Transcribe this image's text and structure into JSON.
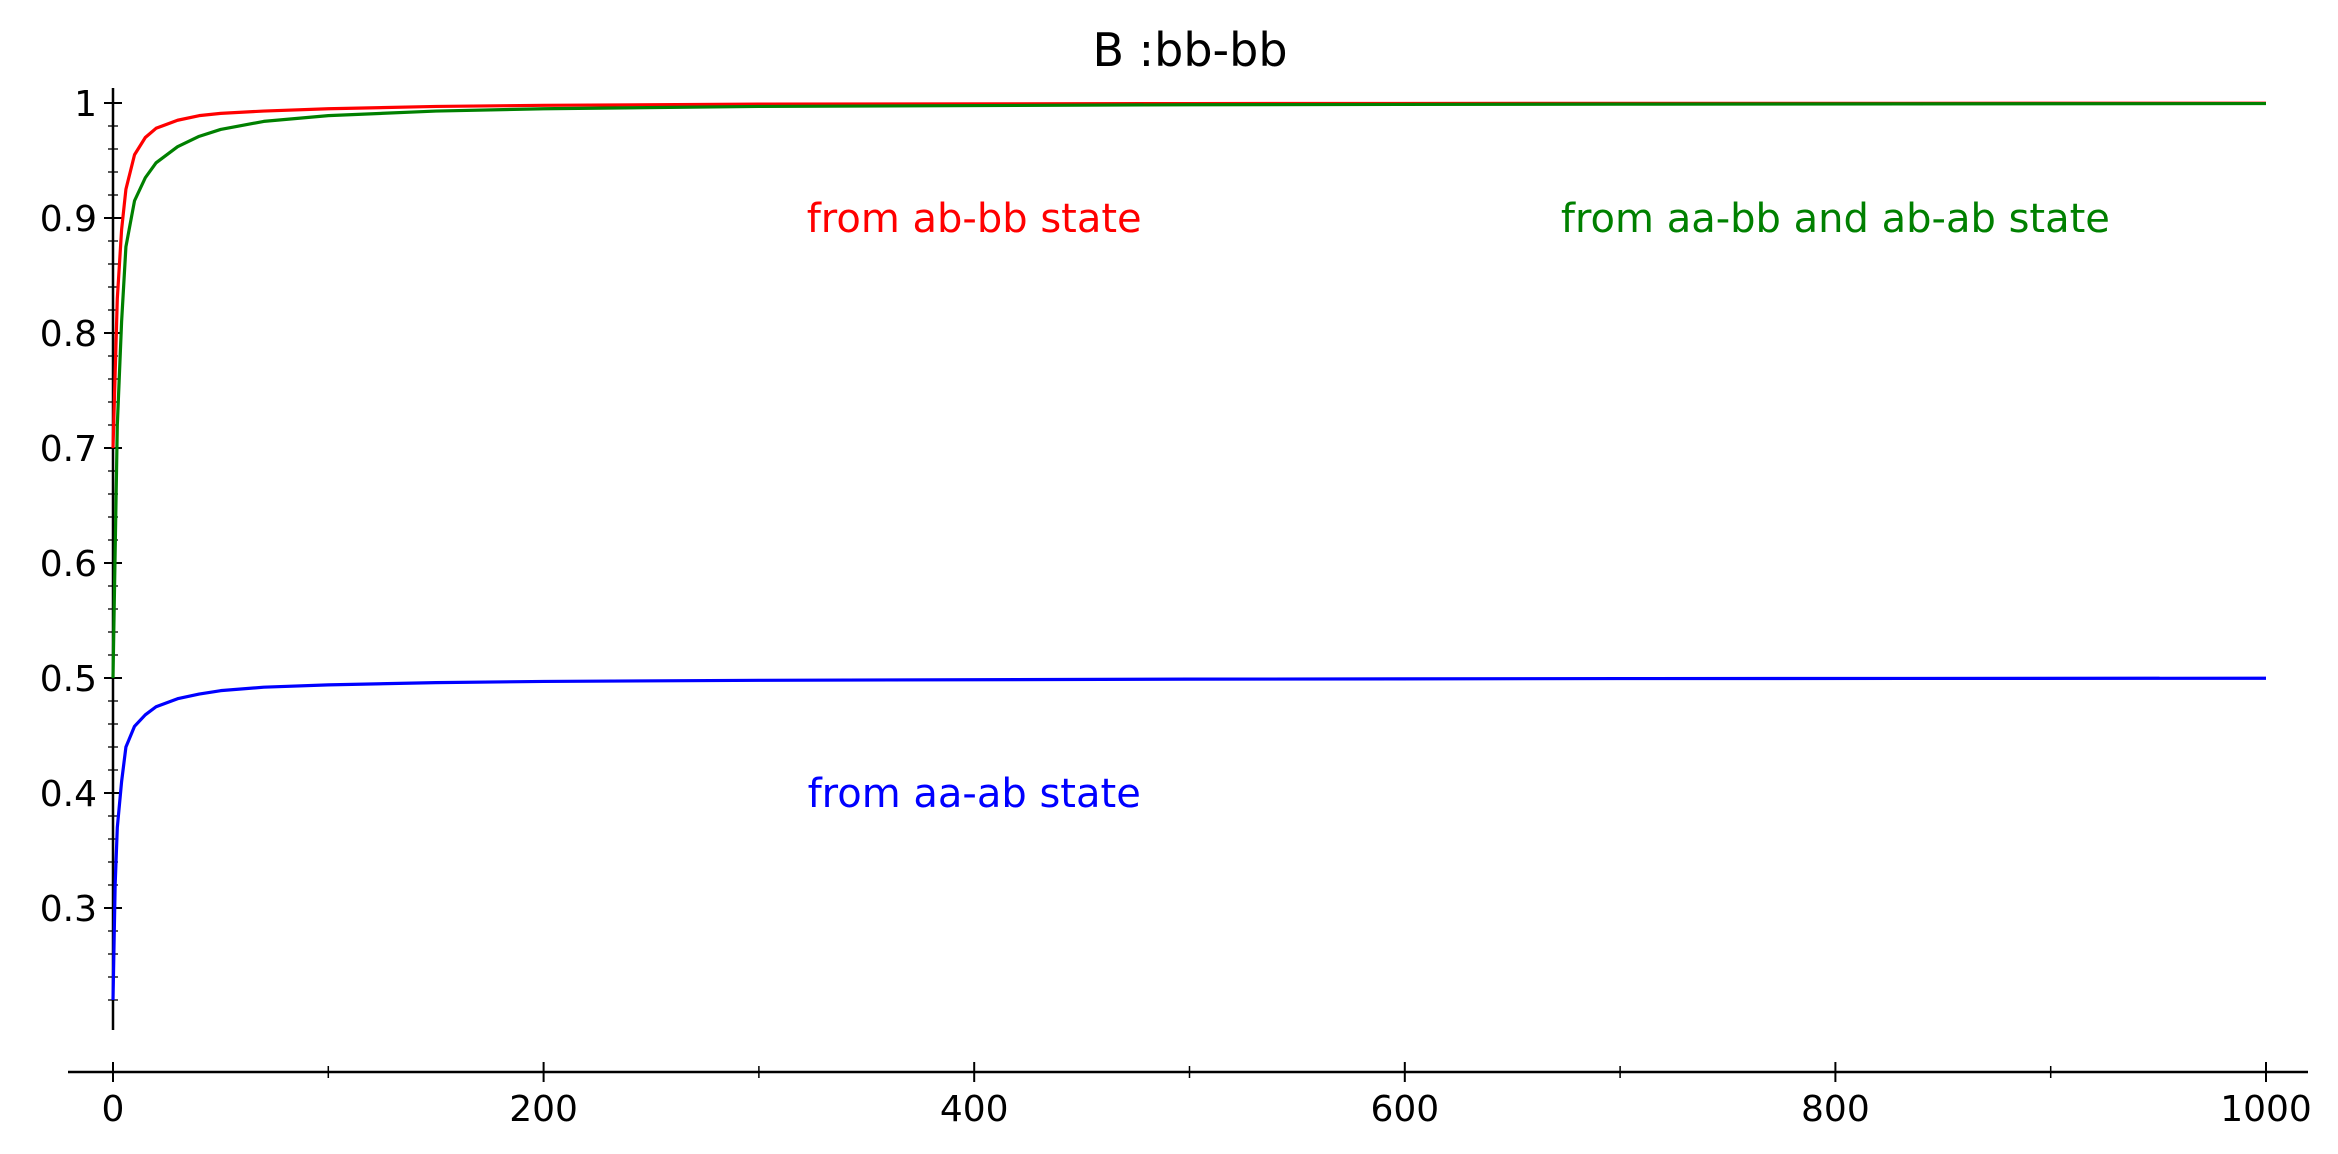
{
  "chart_data": {
    "type": "line",
    "title": "B :bb-bb",
    "xlabel": "",
    "ylabel": "",
    "xlim": [
      0,
      1000
    ],
    "ylim": [
      0.2,
      1.0
    ],
    "x_ticks": [
      0,
      200,
      400,
      600,
      800,
      1000
    ],
    "x_tick_labels": [
      "0",
      "200",
      "400",
      "600",
      "800",
      "1000"
    ],
    "y_ticks": [
      0.3,
      0.4,
      0.5,
      0.6,
      0.7,
      0.8,
      0.9,
      1.0
    ],
    "y_tick_labels": [
      "0.3",
      "0.4",
      "0.5",
      "0.6",
      "0.7",
      "0.8",
      "0.9",
      "1"
    ],
    "grid": false,
    "series": [
      {
        "key": "red",
        "color": "#ff0000",
        "x": [
          0,
          2,
          4,
          6,
          10,
          15,
          20,
          30,
          40,
          50,
          70,
          100,
          150,
          200,
          300,
          500,
          700,
          1000
        ],
        "y": [
          0.7,
          0.83,
          0.89,
          0.925,
          0.955,
          0.97,
          0.978,
          0.985,
          0.989,
          0.991,
          0.993,
          0.995,
          0.997,
          0.998,
          0.999,
          0.9995,
          0.9997,
          0.9998
        ]
      },
      {
        "key": "green",
        "color": "#008000",
        "x": [
          0,
          2,
          4,
          6,
          10,
          15,
          20,
          30,
          40,
          50,
          70,
          100,
          150,
          200,
          300,
          500,
          700,
          1000
        ],
        "y": [
          0.5,
          0.72,
          0.81,
          0.875,
          0.915,
          0.935,
          0.948,
          0.962,
          0.971,
          0.977,
          0.984,
          0.989,
          0.993,
          0.995,
          0.997,
          0.9985,
          0.999,
          0.9995
        ]
      },
      {
        "key": "blue",
        "color": "#0000ff",
        "x": [
          0,
          1,
          2,
          4,
          6,
          10,
          15,
          20,
          30,
          40,
          50,
          70,
          100,
          150,
          200,
          300,
          500,
          700,
          1000
        ],
        "y": [
          0.22,
          0.32,
          0.37,
          0.41,
          0.44,
          0.458,
          0.468,
          0.475,
          0.482,
          0.486,
          0.489,
          0.492,
          0.494,
          0.496,
          0.497,
          0.498,
          0.499,
          0.4995,
          0.4998
        ]
      }
    ],
    "annotations": [
      {
        "text": "from ab-bb state",
        "color": "#ff0000",
        "x": 400,
        "y": 0.9
      },
      {
        "text": "from aa-bb and ab-ab state",
        "color": "#008000",
        "x": 800,
        "y": 0.9
      },
      {
        "text": "from aa-ab state",
        "color": "#0000ff",
        "x": 400,
        "y": 0.4
      }
    ]
  }
}
